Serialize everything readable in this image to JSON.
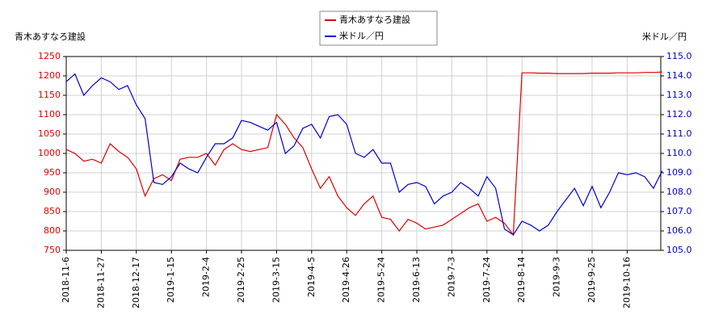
{
  "chart_data": {
    "type": "line",
    "y_label": "青木あすなろ建設",
    "y2_label": "米ドル／円",
    "categories": [
      "2018-11-6",
      null,
      null,
      null,
      "2018-11-27",
      null,
      null,
      null,
      "2018-12-17",
      null,
      null,
      null,
      "2019-1-15",
      null,
      null,
      null,
      "2019-2-4",
      null,
      null,
      null,
      "2019-2-25",
      null,
      null,
      null,
      "2019-3-15",
      null,
      null,
      null,
      "2019-4-5",
      null,
      null,
      null,
      "2019-4-26",
      null,
      null,
      null,
      "2019-5-24",
      null,
      null,
      null,
      "2019-6-13",
      null,
      null,
      null,
      "2019-7-3",
      null,
      null,
      null,
      "2019-7-24",
      null,
      null,
      null,
      "2019-8-14",
      null,
      null,
      null,
      "2019-9-3",
      null,
      null,
      null,
      "2019-9-25",
      null,
      null,
      null,
      "2019-10-16",
      null,
      null,
      null,
      null
    ],
    "series": [
      {
        "name": "青木あすなろ建設",
        "color": "#dd0000",
        "axis": "y",
        "values": [
          1010,
          1000,
          980,
          985,
          975,
          1025,
          1005,
          990,
          960,
          890,
          935,
          945,
          930,
          985,
          990,
          990,
          1000,
          970,
          1010,
          1025,
          1010,
          1005,
          1010,
          1015,
          1100,
          1075,
          1040,
          1015,
          960,
          910,
          940,
          890,
          860,
          840,
          870,
          890,
          835,
          830,
          800,
          830,
          820,
          805,
          810,
          815,
          830,
          845,
          860,
          870,
          825,
          835,
          820,
          790,
          1208,
          1208,
          1207,
          1207,
          1206,
          1206,
          1206,
          1206,
          1207,
          1207,
          1207,
          1208,
          1208,
          1208,
          1209,
          1209,
          1210
        ]
      },
      {
        "name": "米ドル／円",
        "color": "#0000cc",
        "axis": "y2",
        "values": [
          113.7,
          114.1,
          113.0,
          113.5,
          113.9,
          113.7,
          113.3,
          113.5,
          112.5,
          111.8,
          108.5,
          108.4,
          108.8,
          109.5,
          109.2,
          109.0,
          109.8,
          110.5,
          110.5,
          110.8,
          111.7,
          111.6,
          111.4,
          111.2,
          111.6,
          110.0,
          110.4,
          111.3,
          111.5,
          110.8,
          111.9,
          112.0,
          111.5,
          110.0,
          109.8,
          110.2,
          109.5,
          109.5,
          108.0,
          108.4,
          108.5,
          108.3,
          107.4,
          107.8,
          108.0,
          108.5,
          108.2,
          107.8,
          108.8,
          108.2,
          106.1,
          105.8,
          106.5,
          106.3,
          106.0,
          106.3,
          107.0,
          107.6,
          108.2,
          107.3,
          108.3,
          107.2,
          108.0,
          109.0,
          108.9,
          109.0,
          108.8,
          108.2,
          109.1
        ]
      }
    ],
    "ylim": [
      750,
      1250
    ],
    "yticks": [
      750,
      800,
      850,
      900,
      950,
      1000,
      1050,
      1100,
      1150,
      1200,
      1250
    ],
    "y2lim": [
      105,
      115
    ],
    "y2ticks": [
      {
        "value": 105,
        "label": "105.0"
      },
      {
        "value": 106,
        "label": "106.0"
      },
      {
        "value": 107,
        "label": "107.0"
      },
      {
        "value": 108,
        "label": "108.0"
      },
      {
        "value": 109,
        "label": "109.0"
      },
      {
        "value": 110,
        "label": "110.0"
      },
      {
        "value": 111,
        "label": "111.0"
      },
      {
        "value": 112,
        "label": "112.0"
      },
      {
        "value": 113,
        "label": "113.0"
      },
      {
        "value": 114,
        "label": "114.0"
      },
      {
        "value": 115,
        "label": "115.0"
      }
    ],
    "grid": true,
    "legend": "top"
  }
}
